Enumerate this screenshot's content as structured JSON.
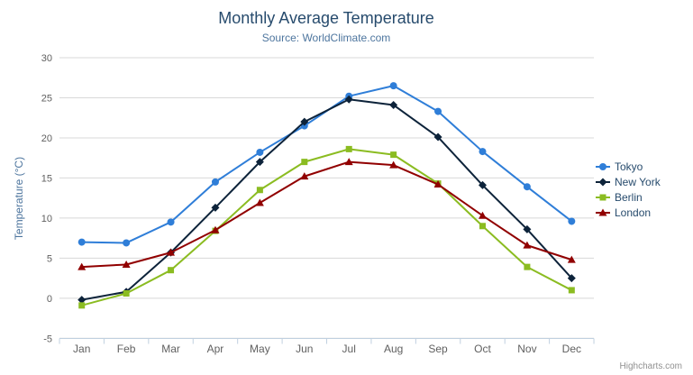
{
  "chart_data": {
    "type": "line",
    "title": "Monthly Average Temperature",
    "subtitle": "Source: WorldClimate.com",
    "xlabel": "",
    "ylabel": "Temperature (°C)",
    "ylim": [
      -5,
      30
    ],
    "ytick_step": 5,
    "grid": true,
    "legend_position": "right",
    "categories": [
      "Jan",
      "Feb",
      "Mar",
      "Apr",
      "May",
      "Jun",
      "Jul",
      "Aug",
      "Sep",
      "Oct",
      "Nov",
      "Dec"
    ],
    "series": [
      {
        "name": "Tokyo",
        "color": "#2f7ed8",
        "marker": "circle",
        "values": [
          7.0,
          6.9,
          9.5,
          14.5,
          18.2,
          21.5,
          25.2,
          26.5,
          23.3,
          18.3,
          13.9,
          9.6
        ]
      },
      {
        "name": "New York",
        "color": "#0d233a",
        "marker": "diamond",
        "values": [
          -0.2,
          0.8,
          5.7,
          11.3,
          17.0,
          22.0,
          24.8,
          24.1,
          20.1,
          14.1,
          8.6,
          2.5
        ]
      },
      {
        "name": "Berlin",
        "color": "#8bbc21",
        "marker": "square",
        "values": [
          -0.9,
          0.6,
          3.5,
          8.4,
          13.5,
          17.0,
          18.6,
          17.9,
          14.3,
          9.0,
          3.9,
          1.0
        ]
      },
      {
        "name": "London",
        "color": "#910000",
        "marker": "triangle",
        "values": [
          3.9,
          4.2,
          5.7,
          8.5,
          11.9,
          15.2,
          17.0,
          16.6,
          14.2,
          10.3,
          6.6,
          4.8
        ]
      }
    ]
  },
  "credits": {
    "text": "Highcharts.com"
  },
  "export_menu": {
    "icon": "hamburger-icon"
  },
  "colors": {
    "title": "#274b6d",
    "subtitle": "#4d759e",
    "axis_title": "#4d759e",
    "axis_label": "#606060",
    "grid_line": "#d8d8d8",
    "axis_line": "#c0d0e0",
    "legend_text": "#274b6d",
    "credits_text": "#909090",
    "menu_icon": "#666666",
    "background": "#ffffff"
  }
}
